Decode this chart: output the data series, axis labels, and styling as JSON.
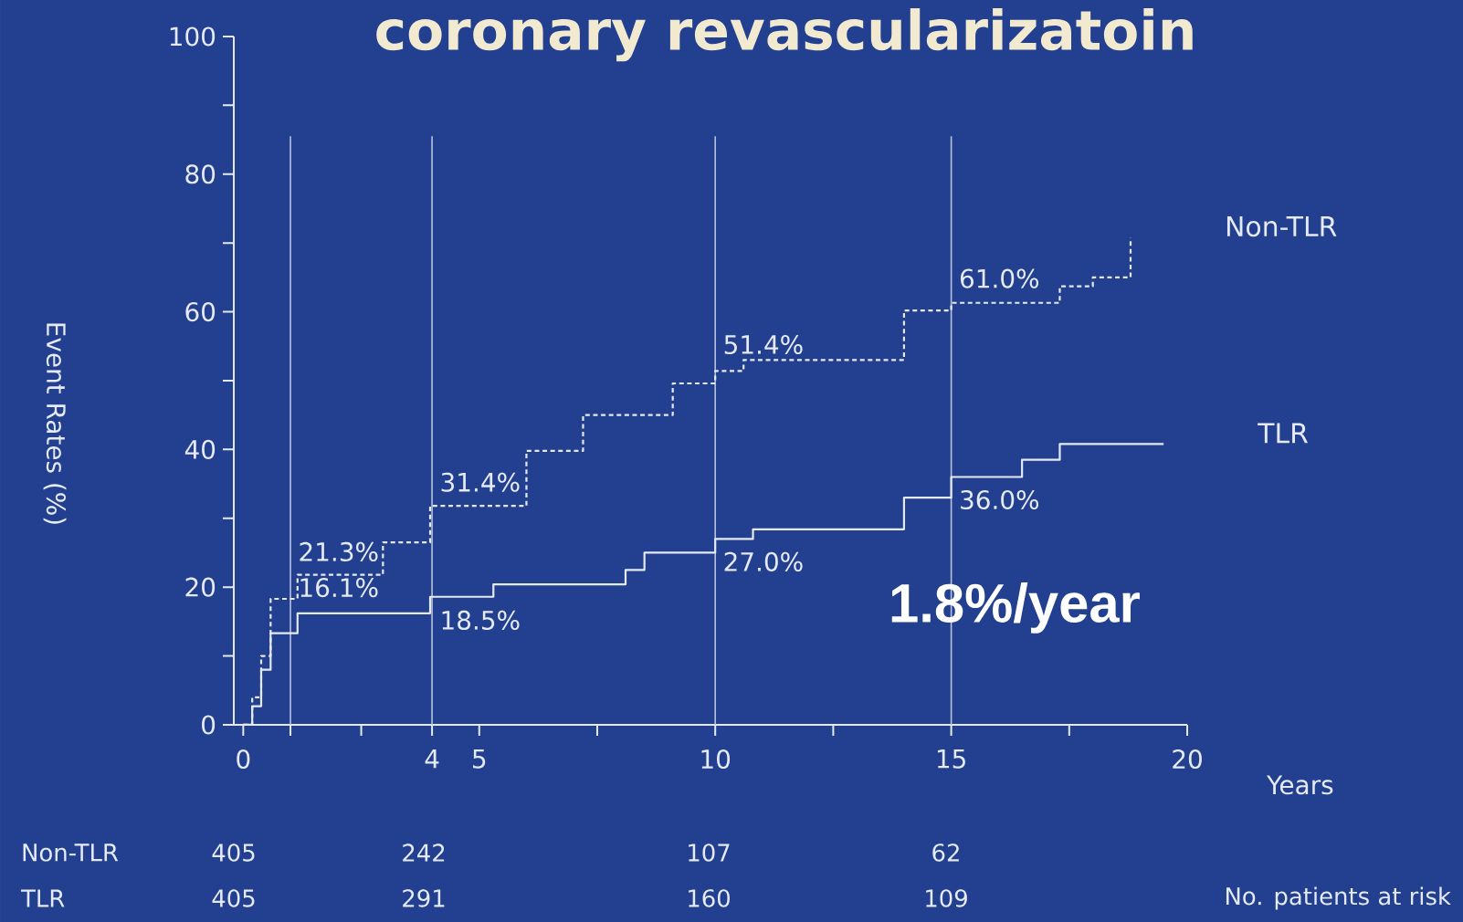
{
  "chart_data": {
    "type": "step",
    "title": "coronary revascularizatoin",
    "xlabel": "Years",
    "ylabel": "Event Rates (%)",
    "xlim": [
      -0.2,
      20
    ],
    "ylim": [
      0,
      100
    ],
    "xticks": [
      0,
      {
        "value": 1,
        "label": null
      },
      {
        "value": 2.5,
        "label": null
      },
      4,
      5,
      {
        "value": 7.5,
        "label": null
      },
      10,
      {
        "value": 12.5,
        "label": null
      },
      15,
      {
        "value": 17.5,
        "label": null
      },
      20
    ],
    "yticks": [
      0,
      {
        "value": 10,
        "label": null
      },
      20,
      {
        "value": 30,
        "label": null
      },
      40,
      {
        "value": 50,
        "label": null
      },
      60,
      {
        "value": 70,
        "label": null
      },
      80,
      {
        "value": 90,
        "label": null
      },
      100
    ],
    "grid": false,
    "legend": false,
    "marker": "none",
    "series": [
      {
        "name": "Non-TLR",
        "color": "#e6eaf4",
        "line_style": "dashed",
        "x": [
          0,
          0.19,
          0.38,
          0.58,
          1.15,
          2.96,
          3.96,
          6.0,
          7.2,
          9.1,
          10,
          10.6,
          14,
          15,
          17.3,
          18,
          18.8
        ],
        "values": [
          0,
          4,
          10,
          18.3,
          21.8,
          26.5,
          31.8,
          39.8,
          45,
          49.6,
          51.4,
          53,
          60.2,
          61.3,
          63.7,
          65,
          70.8
        ]
      },
      {
        "name": "TLR",
        "color": "#e6eaf4",
        "line_style": "solid",
        "x": [
          0,
          0.19,
          0.38,
          0.58,
          1.15,
          3.96,
          5.3,
          8.1,
          8.5,
          10,
          10.8,
          14,
          15,
          16.5,
          17.3,
          19.5
        ],
        "values": [
          0,
          2.7,
          8,
          13.3,
          16.2,
          18.6,
          20.4,
          22.5,
          25,
          27,
          28.4,
          33,
          36,
          38.5,
          40.8,
          40.8
        ]
      }
    ],
    "ref_lines": [
      {
        "axis": "x",
        "value": 1,
        "color": "#b7c2de"
      },
      {
        "axis": "x",
        "value": 4,
        "color": "#b7c2de"
      },
      {
        "axis": "x",
        "value": 10,
        "color": "#b7c2de"
      },
      {
        "axis": "x",
        "value": 15,
        "color": "#b7c2de"
      }
    ],
    "annotations": [
      {
        "text": "21.3%",
        "x": 1,
        "y": 21.3
      },
      {
        "text": "31.4%",
        "x": 4,
        "y": 31.4
      },
      {
        "text": "51.4%",
        "x": 10,
        "y": 51.4
      },
      {
        "text": "61.0%",
        "x": 15,
        "y": 61.0
      },
      {
        "text": "16.1%",
        "x": 1,
        "y": 16.1
      },
      {
        "text": "18.5%",
        "x": 4,
        "y": 18.5
      },
      {
        "text": "27.0%",
        "x": 10,
        "y": 27.0
      },
      {
        "text": "36.0%",
        "x": 15,
        "y": 36.0
      },
      "1.8%/year",
      "Non-TLR",
      "405",
      "242",
      "107",
      "62",
      "TLR",
      "405",
      "291",
      "160",
      "109",
      "No. patients at risk"
    ]
  }
}
